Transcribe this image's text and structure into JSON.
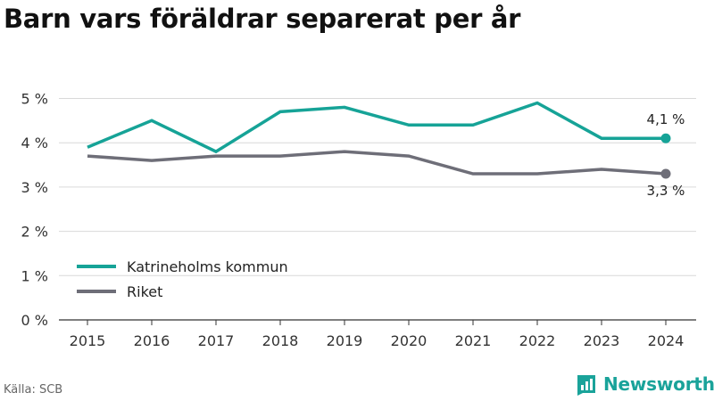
{
  "title": "Barn vars föräldrar separerat per år",
  "source": "Källa: SCB",
  "brand": {
    "name": "Newsworthy",
    "icon": "newsworthy-logo-icon"
  },
  "colors": {
    "teal": "#16a397",
    "grey": "#6e6e78",
    "grid": "#d9d9d9"
  },
  "chart_data": {
    "type": "line",
    "x": [
      "2015",
      "2016",
      "2017",
      "2018",
      "2019",
      "2020",
      "2021",
      "2022",
      "2023",
      "2024"
    ],
    "yticks": [
      "0 %",
      "1 %",
      "2 %",
      "3 %",
      "4 %",
      "5 %"
    ],
    "ylim": [
      0,
      5.5
    ],
    "grid": true,
    "legend_position": "bottom-left",
    "series": [
      {
        "name": "Katrineholms kommun",
        "color": "#16a397",
        "values": [
          3.9,
          4.5,
          3.8,
          4.7,
          4.8,
          4.4,
          4.4,
          4.9,
          4.1,
          4.1
        ],
        "end_label": "4,1 %"
      },
      {
        "name": "Riket",
        "color": "#6e6e78",
        "values": [
          3.7,
          3.6,
          3.7,
          3.7,
          3.8,
          3.7,
          3.3,
          3.3,
          3.4,
          3.3
        ],
        "end_label": "3,3 %"
      }
    ]
  }
}
